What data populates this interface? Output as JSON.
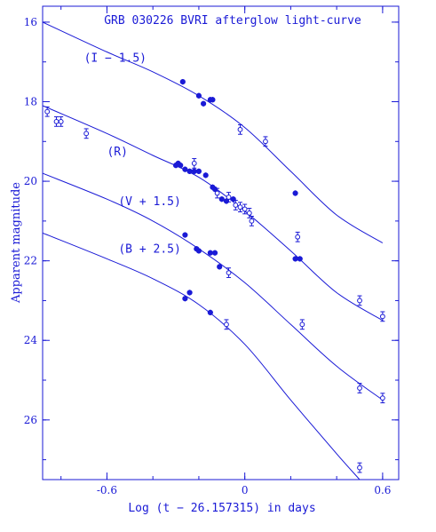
{
  "chart_data": {
    "type": "scatter",
    "title": "GRB 030226 BVRI afterglow light-curve",
    "xlabel": "Log (t − 26.157315) in days",
    "ylabel": "Apparent magnitude",
    "xlim": [
      -0.88,
      0.67
    ],
    "ylim": [
      27.5,
      15.6
    ],
    "y_inverted": true,
    "x_ticks": [
      -0.6,
      0,
      0.6
    ],
    "x_tick_labels": [
      "-0.6",
      "0",
      "0.6"
    ],
    "y_ticks": [
      16,
      18,
      20,
      22,
      24,
      26
    ],
    "y_tick_labels": [
      "16",
      "18",
      "20",
      "22",
      "24",
      "26"
    ],
    "grid": false,
    "legend": "none",
    "color": "#1a1ad6",
    "series": [
      {
        "name": "(I − 1.5)",
        "label_at": [
          -0.7,
          17.0
        ],
        "filled": [
          [
            -0.27,
            17.5
          ],
          [
            -0.2,
            17.85
          ],
          [
            -0.18,
            18.05
          ],
          [
            -0.15,
            17.95
          ],
          [
            -0.14,
            17.95
          ],
          [
            0.22,
            20.3
          ],
          [
            0.22,
            21.95
          ],
          [
            0.24,
            21.95
          ]
        ],
        "open": [
          [
            -0.02,
            18.7
          ],
          [
            0.09,
            19.0
          ]
        ],
        "model": [
          [
            -0.88,
            16.0
          ],
          [
            -0.6,
            16.75
          ],
          [
            -0.4,
            17.25
          ],
          [
            -0.2,
            17.85
          ],
          [
            0.0,
            18.65
          ],
          [
            0.2,
            19.75
          ],
          [
            0.4,
            20.85
          ],
          [
            0.6,
            21.55
          ]
        ]
      },
      {
        "name": "(R)",
        "label_at": [
          -0.6,
          19.35
        ],
        "filled": [
          [
            -0.3,
            19.6
          ],
          [
            -0.29,
            19.55
          ],
          [
            -0.28,
            19.6
          ],
          [
            -0.26,
            19.7
          ],
          [
            -0.24,
            19.75
          ],
          [
            -0.22,
            19.75
          ],
          [
            -0.2,
            19.75
          ],
          [
            -0.17,
            19.85
          ],
          [
            -0.14,
            20.15
          ],
          [
            -0.13,
            20.2
          ],
          [
            -0.1,
            20.45
          ],
          [
            -0.08,
            20.5
          ],
          [
            -0.05,
            20.45
          ]
        ],
        "open": [
          [
            -0.86,
            18.25
          ],
          [
            -0.82,
            18.5
          ],
          [
            -0.8,
            18.5
          ],
          [
            -0.69,
            18.8
          ],
          [
            -0.22,
            19.55
          ],
          [
            -0.12,
            20.3
          ],
          [
            -0.07,
            20.4
          ],
          [
            -0.04,
            20.6
          ],
          [
            -0.02,
            20.65
          ],
          [
            0.0,
            20.7
          ],
          [
            0.02,
            20.8
          ],
          [
            0.03,
            21.0
          ],
          [
            0.23,
            21.4
          ],
          [
            0.5,
            23.0
          ],
          [
            0.6,
            23.4
          ]
        ],
        "model": [
          [
            -0.88,
            18.1
          ],
          [
            -0.6,
            18.8
          ],
          [
            -0.4,
            19.35
          ],
          [
            -0.2,
            19.9
          ],
          [
            0.0,
            20.75
          ],
          [
            0.2,
            21.75
          ],
          [
            0.4,
            22.8
          ],
          [
            0.6,
            23.5
          ]
        ]
      },
      {
        "name": "(V + 1.5)",
        "label_at": [
          -0.55,
          20.6
        ],
        "filled": [
          [
            -0.26,
            21.35
          ],
          [
            -0.21,
            21.7
          ],
          [
            -0.2,
            21.75
          ],
          [
            -0.15,
            21.8
          ],
          [
            -0.13,
            21.8
          ],
          [
            -0.11,
            22.15
          ]
        ],
        "open": [
          [
            -0.07,
            22.3
          ],
          [
            0.25,
            23.6
          ],
          [
            0.5,
            25.2
          ],
          [
            0.6,
            25.45
          ]
        ],
        "model": [
          [
            -0.88,
            19.8
          ],
          [
            -0.6,
            20.45
          ],
          [
            -0.4,
            21.0
          ],
          [
            -0.2,
            21.7
          ],
          [
            0.0,
            22.55
          ],
          [
            0.2,
            23.6
          ],
          [
            0.4,
            24.65
          ],
          [
            0.6,
            25.5
          ]
        ]
      },
      {
        "name": "(B + 2.5)",
        "label_at": [
          -0.55,
          21.8
        ],
        "filled": [
          [
            -0.26,
            22.95
          ],
          [
            -0.24,
            22.8
          ],
          [
            -0.15,
            23.3
          ]
        ],
        "open": [
          [
            -0.08,
            23.6
          ],
          [
            0.5,
            27.2
          ]
        ],
        "model": [
          [
            -0.88,
            21.3
          ],
          [
            -0.6,
            21.95
          ],
          [
            -0.4,
            22.45
          ],
          [
            -0.2,
            23.1
          ],
          [
            0.0,
            24.1
          ],
          [
            0.2,
            25.5
          ],
          [
            0.4,
            26.85
          ],
          [
            0.5,
            27.5
          ]
        ]
      }
    ]
  }
}
